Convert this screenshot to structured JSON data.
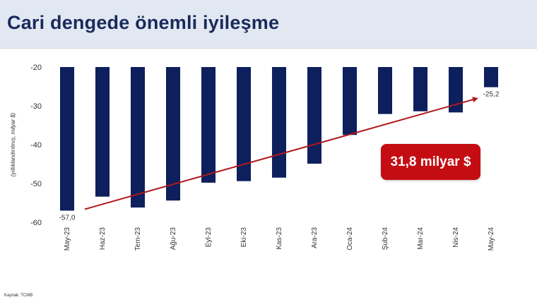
{
  "title": "Cari dengede önemli iyileşme",
  "callout": "31,8 milyar $",
  "source": "Kaynak: TCMB",
  "chart_data": {
    "type": "bar",
    "categories": [
      "May-23",
      "Haz-23",
      "Tem-23",
      "Ağu-23",
      "Eyl-23",
      "Eki-23",
      "Kas-23",
      "Ara-23",
      "Oca-24",
      "Şub-24",
      "Mar-24",
      "Nis-24",
      "May-24"
    ],
    "values": [
      -57.0,
      -53.4,
      -56.2,
      -54.4,
      -49.8,
      -49.4,
      -48.5,
      -44.9,
      -37.5,
      -32.1,
      -31.4,
      -31.7,
      -25.2
    ],
    "ylabel": "(yıllıklandırılmış, milyar $)",
    "ylim": [
      -60,
      -20
    ],
    "yticks": [
      -20,
      -30,
      -40,
      -50,
      -60
    ],
    "ytick_labels": [
      "-20",
      "-30",
      "-40",
      "-50",
      "-60"
    ],
    "data_labels": [
      {
        "index": 0,
        "text": "-57,0"
      },
      {
        "index": 12,
        "text": "-25,2"
      }
    ],
    "bar_color": "#0d1f5c",
    "trend_color": "#b0181c",
    "grid": false
  }
}
